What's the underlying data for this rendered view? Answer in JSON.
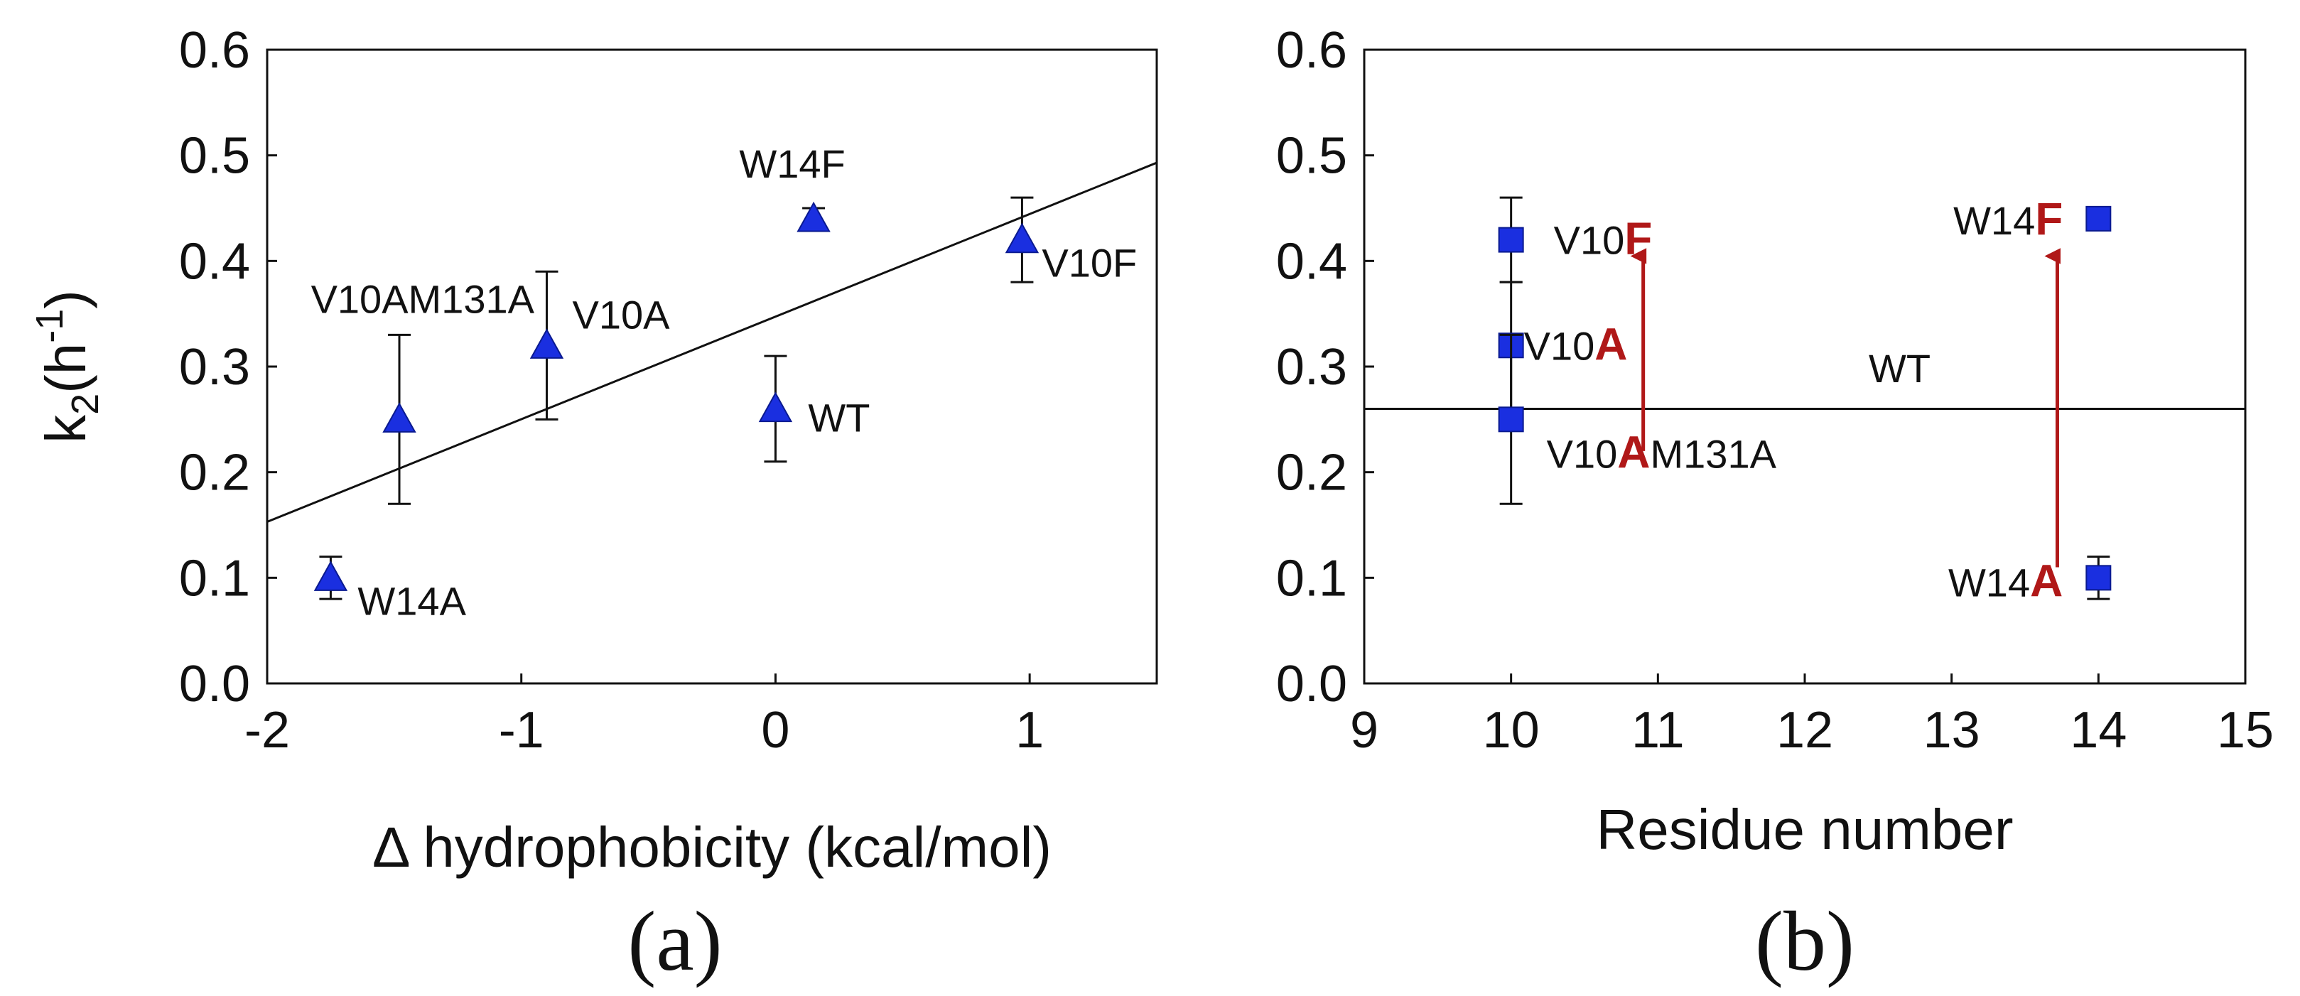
{
  "chart_data": [
    {
      "type": "scatter",
      "panel": "(a)",
      "xlabel": "Δ hydrophobicity (kcal/mol)",
      "ylabel_main": "k",
      "ylabel_sub": "2",
      "ylabel_open": "(h",
      "ylabel_sup": "-1",
      "ylabel_close": ")",
      "xlim": [
        -2,
        1.5
      ],
      "ylim": [
        0,
        0.6
      ],
      "xticks": [
        "-2",
        "-1",
        "0",
        "1"
      ],
      "xtick_values": [
        -2,
        -1,
        0,
        1
      ],
      "yticks": [
        "0.0",
        "0.1",
        "0.2",
        "0.3",
        "0.4",
        "0.5",
        "0.6"
      ],
      "ytick_values": [
        0,
        0.1,
        0.2,
        0.3,
        0.4,
        0.5,
        0.6
      ],
      "marker": "triangle",
      "marker_color": "#1a2fe0",
      "points": [
        {
          "label": "W14A",
          "x": -1.75,
          "y": 0.1,
          "err": 0.02
        },
        {
          "label": "V10AM131A",
          "x": -1.48,
          "y": 0.25,
          "err": 0.08
        },
        {
          "label": "V10A",
          "x": -0.9,
          "y": 0.32,
          "err": 0.07
        },
        {
          "label": "WT",
          "x": 0.0,
          "y": 0.26,
          "err": 0.05
        },
        {
          "label": "W14F",
          "x": 0.15,
          "y": 0.44,
          "err": 0.01
        },
        {
          "label": "V10F",
          "x": 0.97,
          "y": 0.42,
          "err": 0.04
        }
      ],
      "fit_line": {
        "x": [
          -2,
          1.5
        ],
        "y": [
          0.153,
          0.493
        ]
      }
    },
    {
      "type": "scatter",
      "panel": "(b)",
      "xlabel": "Residue number",
      "xlim": [
        9,
        15
      ],
      "ylim": [
        0,
        0.6
      ],
      "xticks": [
        "9",
        "10",
        "11",
        "12",
        "13",
        "14",
        "15"
      ],
      "xtick_values": [
        9,
        10,
        11,
        12,
        13,
        14,
        15
      ],
      "yticks": [
        "0.0",
        "0.1",
        "0.2",
        "0.3",
        "0.4",
        "0.5",
        "0.6"
      ],
      "ytick_values": [
        0,
        0.1,
        0.2,
        0.3,
        0.4,
        0.5,
        0.6
      ],
      "marker": "square",
      "marker_color": "#1a2fe0",
      "highlight_color": "#b01818",
      "points": [
        {
          "x": 10,
          "y": 0.42,
          "err": 0.04
        },
        {
          "x": 10,
          "y": 0.32,
          "err": 0.06
        },
        {
          "x": 10,
          "y": 0.25,
          "err": 0.08
        },
        {
          "x": 14,
          "y": 0.44,
          "err": 0.0
        },
        {
          "x": 14,
          "y": 0.1,
          "err": 0.02
        }
      ],
      "labels": [
        {
          "prefix": "V10",
          "highlight": "F",
          "suffix": ""
        },
        {
          "prefix": "V10",
          "highlight": "A",
          "suffix": ""
        },
        {
          "prefix": "V10",
          "highlight": "A",
          "suffix": "M131A"
        },
        {
          "prefix": "W14",
          "highlight": "F",
          "suffix": ""
        },
        {
          "prefix": "W14",
          "highlight": "A",
          "suffix": ""
        }
      ],
      "wt_line": {
        "y": 0.26,
        "label": "WT"
      },
      "arrows": [
        {
          "x": 10.9,
          "y_from": 0.22,
          "y_to": 0.41
        },
        {
          "x": 13.72,
          "y_from": 0.11,
          "y_to": 0.41
        }
      ]
    }
  ]
}
